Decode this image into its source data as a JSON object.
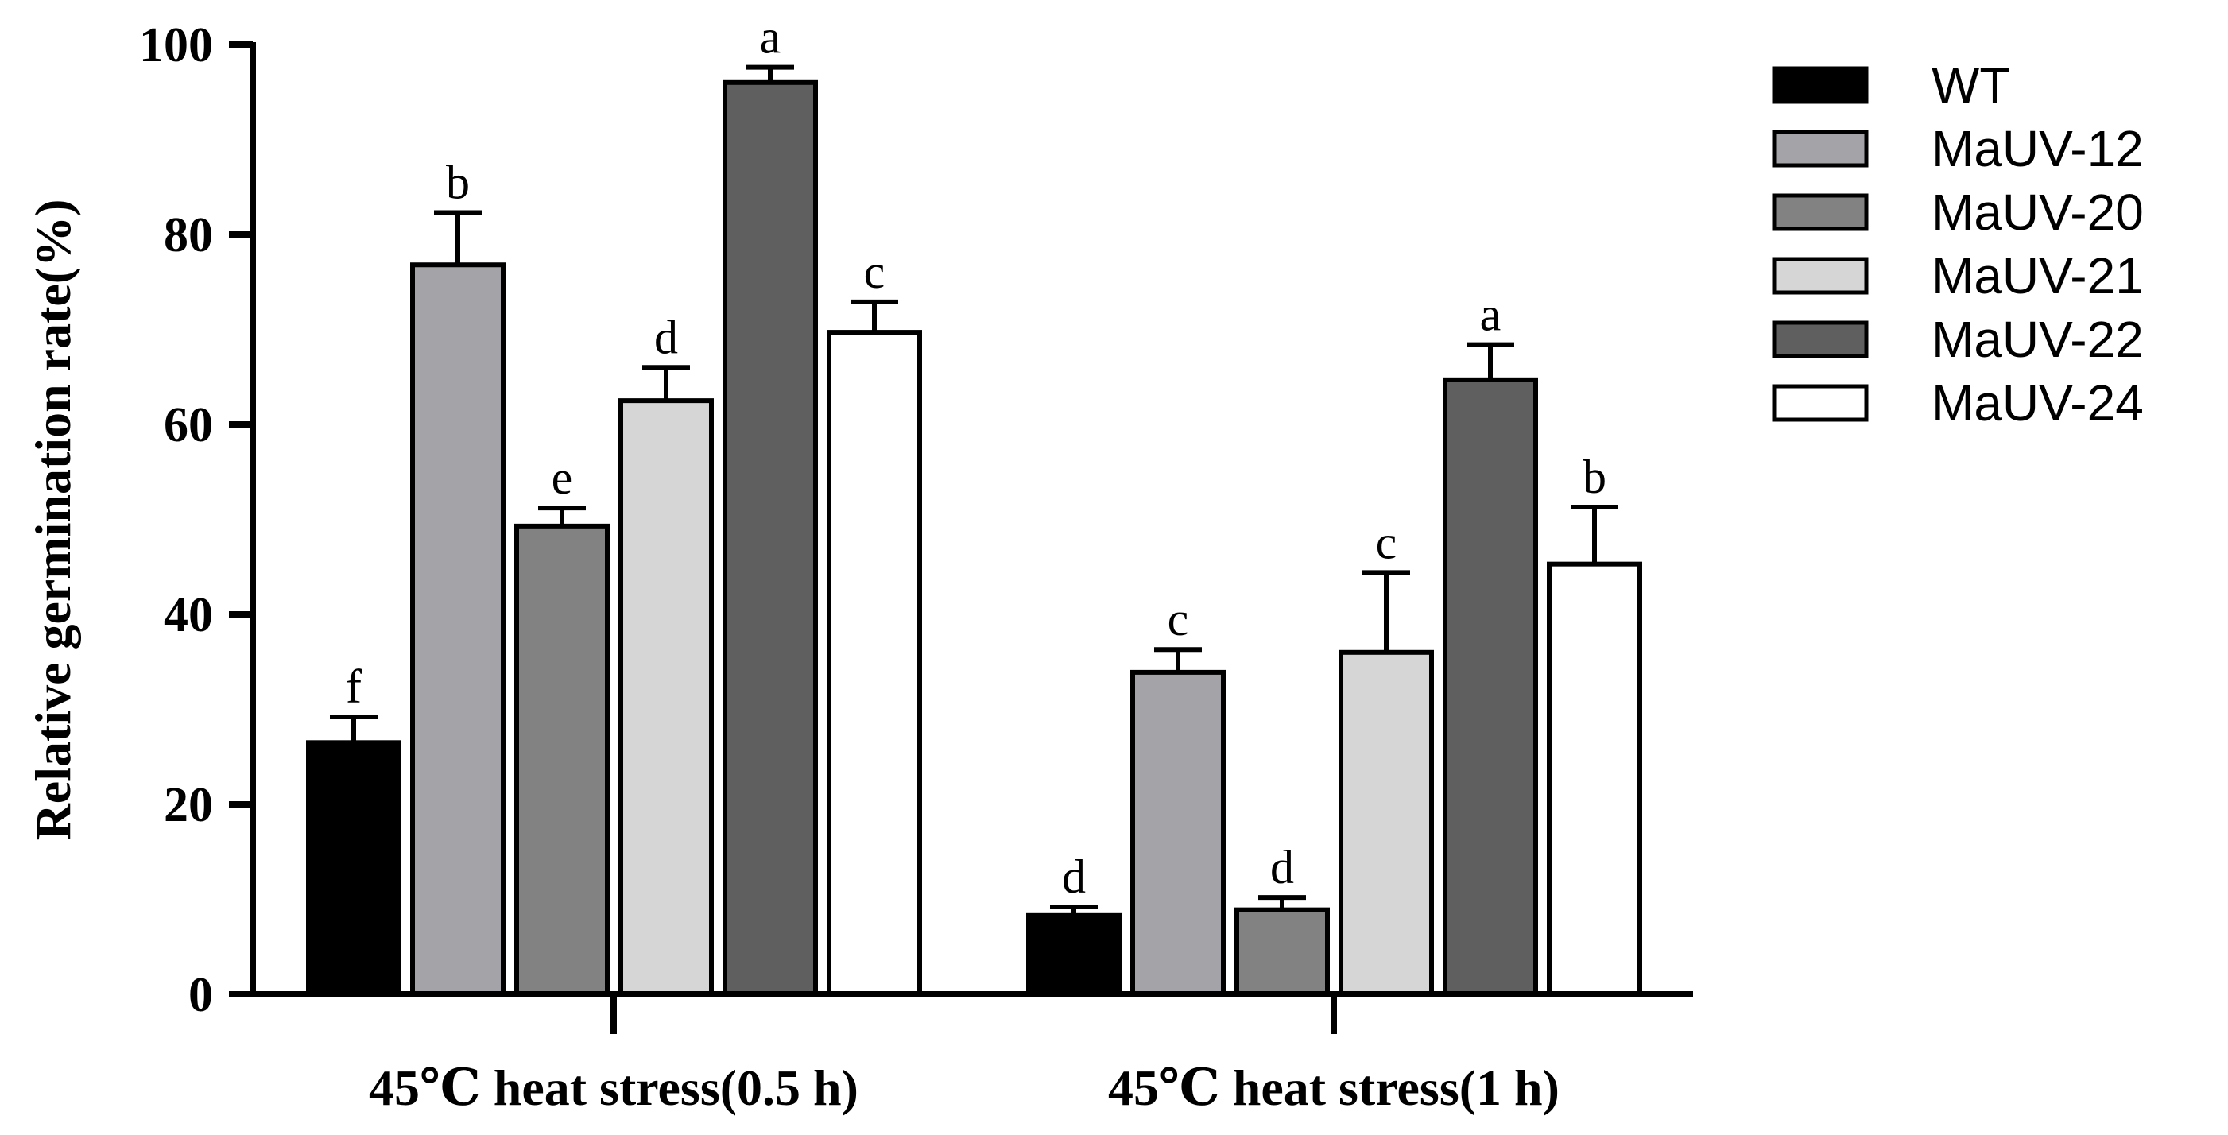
{
  "chart_data": {
    "type": "bar",
    "title": "",
    "xlabel": "",
    "ylabel": "Relative germination rate(%)",
    "ylim": [
      0,
      100
    ],
    "yticks": [
      0,
      20,
      40,
      60,
      80,
      100
    ],
    "grid": false,
    "legend_position": "right",
    "categories": [
      "45℃ heat stress(0.5 h)",
      "45℃ heat stress(1 h)"
    ],
    "series": [
      {
        "name": "WT",
        "color": "#000000",
        "values": [
          26.5,
          8.3
        ],
        "errors": [
          2.7,
          0.9
        ],
        "letters": [
          "f",
          "d"
        ]
      },
      {
        "name": "MaUV-12",
        "color": "#a3a3a8",
        "values": [
          76.8,
          33.9
        ],
        "errors": [
          5.5,
          2.4
        ],
        "letters": [
          "b",
          "c"
        ]
      },
      {
        "name": "MaUV-20",
        "color": "#828282",
        "values": [
          49.3,
          8.9
        ],
        "errors": [
          1.9,
          1.3
        ],
        "letters": [
          "e",
          "d"
        ]
      },
      {
        "name": "MaUV-21",
        "color": "#d6d6d6",
        "values": [
          62.5,
          36.0
        ],
        "errors": [
          3.5,
          8.4
        ],
        "letters": [
          "d",
          "c"
        ]
      },
      {
        "name": "MaUV-22",
        "color": "#5f5f5f",
        "values": [
          96.0,
          64.7
        ],
        "errors": [
          1.6,
          3.7
        ],
        "letters": [
          "a",
          "a"
        ]
      },
      {
        "name": "MaUV-24",
        "color": "#ffffff",
        "values": [
          69.7,
          45.3
        ],
        "errors": [
          3.2,
          6.0
        ],
        "letters": [
          "c",
          "b"
        ]
      }
    ]
  }
}
